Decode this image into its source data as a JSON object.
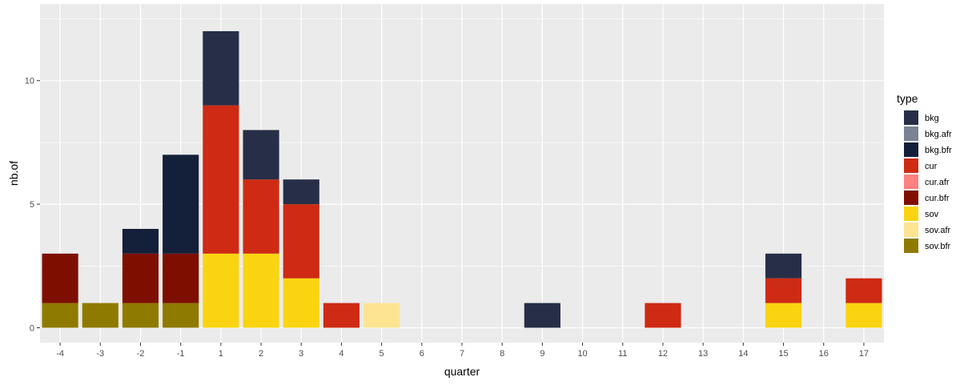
{
  "chart_data": {
    "type": "bar",
    "stacked": true,
    "title": "",
    "xlabel": "quarter",
    "ylabel": "nb.of",
    "categories": [
      "-4",
      "-3",
      "-2",
      "-1",
      "1",
      "2",
      "3",
      "4",
      "5",
      "6",
      "7",
      "8",
      "9",
      "10",
      "11",
      "12",
      "13",
      "14",
      "15",
      "16",
      "17"
    ],
    "ylim": [
      -0.6,
      13.1
    ],
    "yticks": [
      0,
      5,
      10
    ],
    "grid": true,
    "background": "#ebebeb",
    "gridColor": "#ffffff",
    "legend": {
      "title": "type",
      "position": "right"
    },
    "series": [
      {
        "name": "sov.bfr",
        "color": "#8f7a00",
        "values": [
          1,
          1,
          1,
          1,
          0,
          0,
          0,
          0,
          0,
          0,
          0,
          0,
          0,
          0,
          0,
          0,
          0,
          0,
          0,
          0,
          0
        ]
      },
      {
        "name": "sov.afr",
        "color": "#fde493",
        "values": [
          0,
          0,
          0,
          0,
          0,
          0,
          0,
          0,
          1,
          0,
          0,
          0,
          0,
          0,
          0,
          0,
          0,
          0,
          0,
          0,
          0
        ]
      },
      {
        "name": "sov",
        "color": "#fad411",
        "values": [
          0,
          0,
          0,
          0,
          3,
          3,
          2,
          0,
          0,
          0,
          0,
          0,
          0,
          0,
          0,
          0,
          0,
          0,
          1,
          0,
          1
        ]
      },
      {
        "name": "cur.bfr",
        "color": "#7e0f00",
        "values": [
          2,
          0,
          2,
          2,
          0,
          0,
          0,
          0,
          0,
          0,
          0,
          0,
          0,
          0,
          0,
          0,
          0,
          0,
          0,
          0,
          0
        ]
      },
      {
        "name": "cur.afr",
        "color": "#ff8180",
        "values": [
          0,
          0,
          0,
          0,
          0,
          0,
          0,
          0,
          0,
          0,
          0,
          0,
          0,
          0,
          0,
          0,
          0,
          0,
          0,
          0,
          0
        ]
      },
      {
        "name": "cur",
        "color": "#ce2a14",
        "values": [
          0,
          0,
          0,
          0,
          6,
          3,
          3,
          1,
          0,
          0,
          0,
          0,
          0,
          0,
          0,
          1,
          0,
          0,
          1,
          0,
          1
        ]
      },
      {
        "name": "bkg.bfr",
        "color": "#141f39",
        "values": [
          0,
          0,
          1,
          4,
          0,
          0,
          0,
          0,
          0,
          0,
          0,
          0,
          0,
          0,
          0,
          0,
          0,
          0,
          0,
          0,
          0
        ]
      },
      {
        "name": "bkg.afr",
        "color": "#7a8296",
        "values": [
          0,
          0,
          0,
          0,
          0,
          0,
          0,
          0,
          0,
          0,
          0,
          0,
          0,
          0,
          0,
          0,
          0,
          0,
          0,
          0,
          0
        ]
      },
      {
        "name": "bkg",
        "color": "#262f47",
        "values": [
          0,
          0,
          0,
          0,
          3,
          2,
          1,
          0,
          0,
          0,
          0,
          0,
          1,
          0,
          0,
          0,
          0,
          0,
          1,
          0,
          0
        ]
      }
    ],
    "legendOrder": [
      "bkg",
      "bkg.afr",
      "bkg.bfr",
      "cur",
      "cur.afr",
      "cur.bfr",
      "sov",
      "sov.afr",
      "sov.bfr"
    ]
  }
}
